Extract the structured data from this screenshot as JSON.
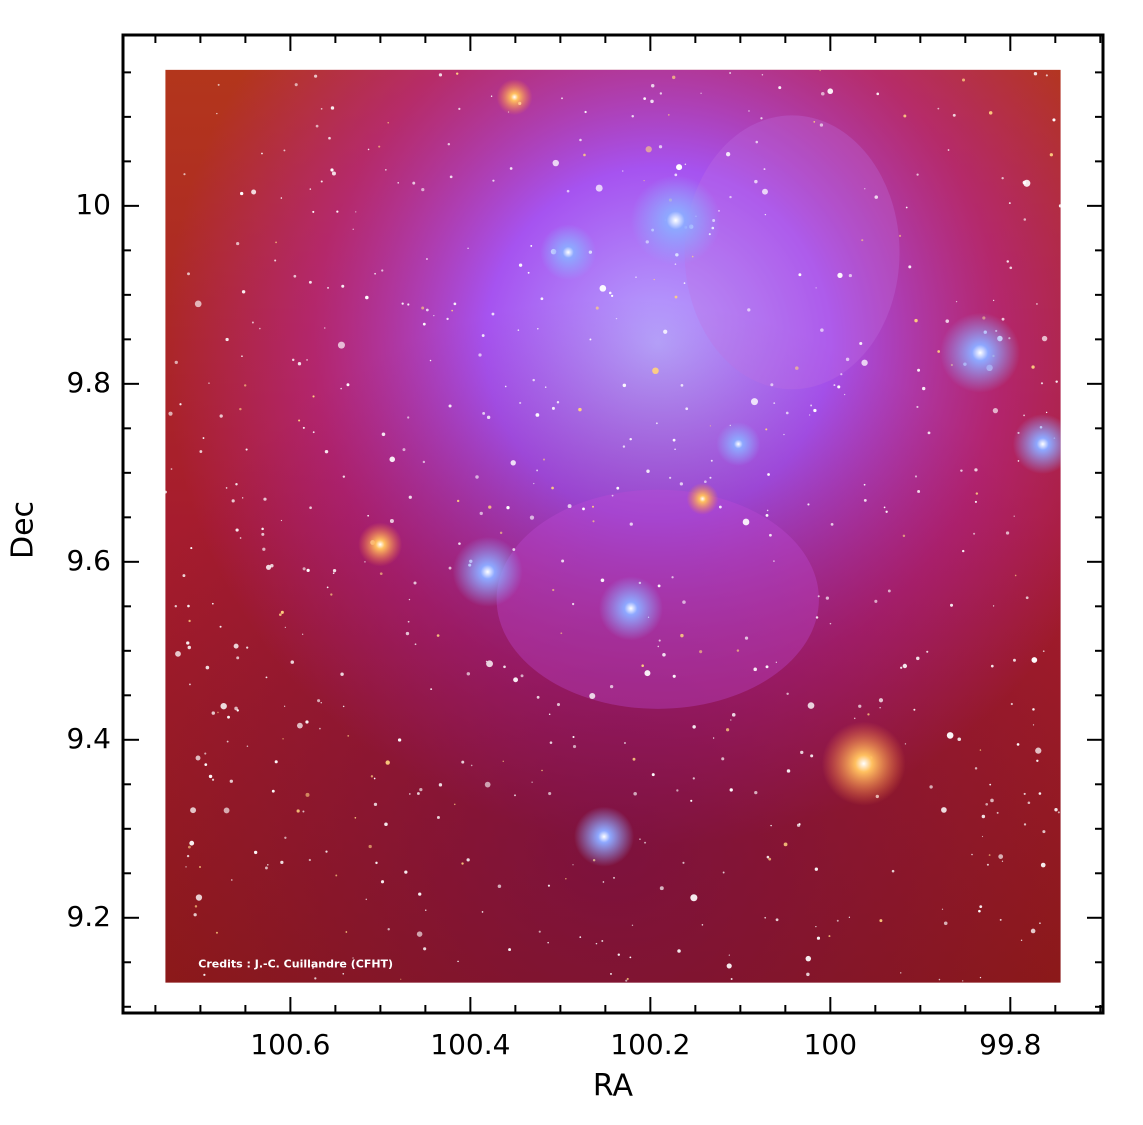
{
  "chart_data": {
    "type": "image",
    "x_label": "RA",
    "y_label": "Dec",
    "credit": "Credits : J.-C. Cuillandre (CFHT)",
    "xlim": [
      100.786,
      99.697
    ],
    "ylim": [
      9.093,
      10.192
    ],
    "xticks": [
      100.6,
      100.4,
      100.2,
      100,
      99.8
    ],
    "yticks": [
      9.2,
      9.4,
      9.6,
      9.8,
      10
    ],
    "xminorticks": [
      100.75,
      100.7,
      100.65,
      100.55,
      100.5,
      100.45,
      100.35,
      100.3,
      100.25,
      100.15,
      100.1,
      100.05,
      99.95,
      99.9,
      99.85,
      99.75,
      99.7
    ],
    "yminorticks": [
      9.1,
      9.15,
      9.25,
      9.3,
      9.35,
      9.45,
      9.5,
      9.55,
      9.65,
      9.7,
      9.75,
      9.85,
      9.9,
      9.95,
      10.05,
      10.1,
      10.15
    ],
    "extent": {
      "x": [
        100.739,
        99.744
      ],
      "y": [
        9.127,
        10.153
      ]
    }
  }
}
